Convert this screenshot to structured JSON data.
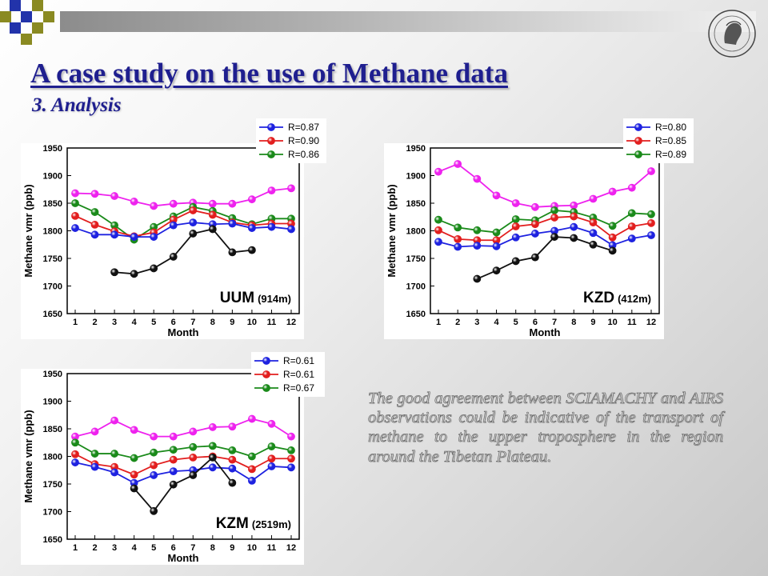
{
  "header": {
    "title": "A case study on the use of Methane data",
    "subtitle": "3. Analysis"
  },
  "note": "The good agreement between SCIAMACHY and AIRS observations could be indicative of the transport of methane to the upper troposphere in the region around the Tibetan Plateau.",
  "colors": {
    "title": "#1f1f8f",
    "blue": "#1e22e0",
    "red": "#e21e1e",
    "green": "#1a8a1a",
    "magenta": "#ee22ee",
    "black": "#111111"
  },
  "chart_data": [
    {
      "type": "line",
      "station": "UUM",
      "altitude": "(914m)",
      "xlabel": "Month",
      "ylabel": "Methane vmr (ppb)",
      "ylim": [
        1650,
        1950
      ],
      "yticks": [
        1650,
        1700,
        1750,
        1800,
        1850,
        1900,
        1950
      ],
      "x": [
        1,
        2,
        3,
        4,
        5,
        6,
        7,
        8,
        9,
        10,
        11,
        12
      ],
      "legend": [
        "R=0.87",
        "R=0.90",
        "R=0.86"
      ],
      "series": [
        {
          "color": "magenta",
          "values": [
            1868,
            1867,
            1863,
            1853,
            1845,
            1849,
            1851,
            1849,
            1849,
            1857,
            1873,
            1877
          ]
        },
        {
          "color": "green",
          "values": [
            1850,
            1834,
            1810,
            1784,
            1807,
            1826,
            1843,
            1836,
            1823,
            1812,
            1822,
            1822
          ]
        },
        {
          "color": "red",
          "values": [
            1827,
            1811,
            1799,
            1790,
            1797,
            1820,
            1837,
            1829,
            1815,
            1810,
            1813,
            1813
          ]
        },
        {
          "color": "blue",
          "values": [
            1805,
            1793,
            1793,
            1789,
            1789,
            1810,
            1815,
            1812,
            1813,
            1805,
            1807,
            1803
          ]
        },
        {
          "color": "black",
          "values": [
            null,
            null,
            1725,
            1722,
            1732,
            1753,
            1795,
            1803,
            1761,
            1765,
            null,
            null
          ]
        }
      ]
    },
    {
      "type": "line",
      "station": "KZD",
      "altitude": "(412m)",
      "xlabel": "Month",
      "ylabel": "Methane vmr (ppb)",
      "ylim": [
        1650,
        1950
      ],
      "yticks": [
        1650,
        1700,
        1750,
        1800,
        1850,
        1900,
        1950
      ],
      "x": [
        1,
        2,
        3,
        4,
        5,
        6,
        7,
        8,
        9,
        10,
        11,
        12
      ],
      "legend": [
        "R=0.80",
        "R=0.85",
        "R=0.89"
      ],
      "series": [
        {
          "color": "magenta",
          "values": [
            1907,
            1921,
            1894,
            1864,
            1850,
            1843,
            1845,
            1846,
            1858,
            1871,
            1878,
            1908
          ]
        },
        {
          "color": "green",
          "values": [
            1820,
            1806,
            1801,
            1797,
            1821,
            1819,
            1837,
            1834,
            1824,
            1809,
            1832,
            1830
          ]
        },
        {
          "color": "red",
          "values": [
            1801,
            1785,
            1783,
            1783,
            1808,
            1812,
            1824,
            1826,
            1815,
            1788,
            1808,
            1814
          ]
        },
        {
          "color": "blue",
          "values": [
            1780,
            1771,
            1773,
            1772,
            1788,
            1795,
            1800,
            1807,
            1796,
            1774,
            1786,
            1792
          ]
        },
        {
          "color": "black",
          "values": [
            null,
            null,
            1713,
            1728,
            1745,
            1752,
            1789,
            1787,
            1775,
            1764,
            null,
            null
          ]
        }
      ]
    },
    {
      "type": "line",
      "station": "KZM",
      "altitude": "(2519m)",
      "xlabel": "Month",
      "ylabel": "Methane vmr (ppb)",
      "ylim": [
        1650,
        1950
      ],
      "yticks": [
        1650,
        1700,
        1750,
        1800,
        1850,
        1900,
        1950
      ],
      "x": [
        1,
        2,
        3,
        4,
        5,
        6,
        7,
        8,
        9,
        10,
        11,
        12
      ],
      "legend": [
        "R=0.61",
        "R=0.61",
        "R=0.67"
      ],
      "series": [
        {
          "color": "magenta",
          "values": [
            1836,
            1845,
            1865,
            1848,
            1836,
            1836,
            1845,
            1853,
            1854,
            1868,
            1859,
            1836
          ]
        },
        {
          "color": "green",
          "values": [
            1825,
            1805,
            1805,
            1797,
            1807,
            1812,
            1817,
            1819,
            1811,
            1800,
            1818,
            1811
          ]
        },
        {
          "color": "red",
          "values": [
            1804,
            1786,
            1781,
            1767,
            1784,
            1794,
            1798,
            1800,
            1794,
            1777,
            1796,
            1796
          ]
        },
        {
          "color": "blue",
          "values": [
            1789,
            1781,
            1771,
            1752,
            1766,
            1773,
            1775,
            1780,
            1778,
            1756,
            1782,
            1780
          ]
        },
        {
          "color": "black",
          "values": [
            null,
            null,
            null,
            1742,
            1701,
            1749,
            1766,
            1798,
            1752,
            null,
            null,
            null
          ]
        }
      ]
    }
  ]
}
